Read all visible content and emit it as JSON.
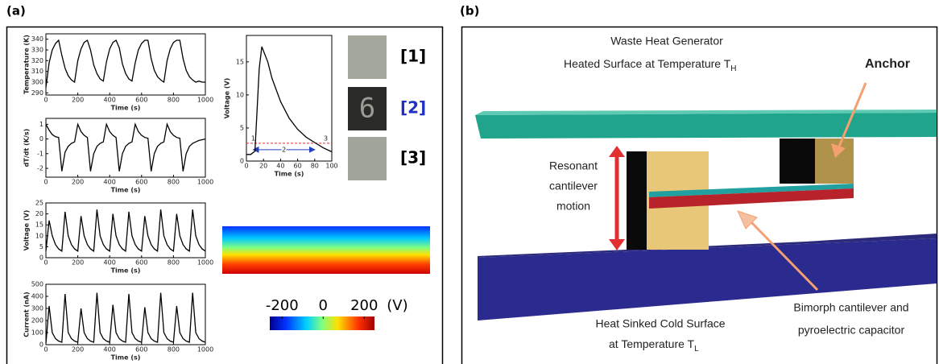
{
  "figure": {
    "panel_a_label": "(a)",
    "panel_b_label": "(b)"
  },
  "chart_data": [
    {
      "type": "line",
      "xlabel": "Time (s)",
      "ylabel": "Temperature (K)",
      "color": "#000000",
      "x": [
        0,
        20,
        40,
        60,
        80,
        100,
        120,
        140,
        160,
        180,
        200,
        220,
        240,
        260,
        280,
        300,
        320,
        340,
        360,
        380,
        400,
        420,
        440,
        460,
        480,
        500,
        520,
        540,
        560,
        580,
        600,
        620,
        640,
        660,
        680,
        700,
        720,
        740,
        760,
        780,
        800,
        820,
        840,
        860,
        880,
        900,
        920,
        940,
        960,
        980,
        1000
      ],
      "values": [
        295,
        318,
        330,
        336,
        339,
        325,
        313,
        306,
        302,
        300,
        320,
        331,
        337,
        339,
        330,
        316,
        308,
        303,
        301,
        319,
        331,
        337,
        339,
        332,
        317,
        308,
        303,
        301,
        318,
        330,
        336,
        339,
        339,
        322,
        311,
        305,
        302,
        300,
        320,
        331,
        337,
        339,
        339,
        322,
        311,
        305,
        302,
        300,
        301,
        300,
        300
      ],
      "xlim": [
        0,
        1000
      ],
      "ylim": [
        288,
        345
      ],
      "xticks": [
        0,
        200,
        400,
        600,
        800,
        1000
      ],
      "yticks": [
        290,
        300,
        310,
        320,
        330,
        340
      ]
    },
    {
      "type": "line",
      "xlabel": "Time (s)",
      "ylabel": "dT/dt (K/s)",
      "color": "#000000",
      "x": [
        0,
        20,
        40,
        60,
        80,
        100,
        120,
        140,
        160,
        180,
        200,
        220,
        240,
        260,
        280,
        300,
        320,
        340,
        360,
        380,
        400,
        420,
        440,
        460,
        480,
        500,
        520,
        540,
        560,
        580,
        600,
        620,
        640,
        660,
        680,
        700,
        720,
        740,
        760,
        780,
        800,
        820,
        840,
        860,
        880,
        900,
        920,
        940,
        960,
        980,
        1000
      ],
      "values": [
        1.0,
        0.6,
        0.3,
        0.15,
        0.1,
        -2.2,
        -0.9,
        -0.5,
        -0.3,
        -0.2,
        1.0,
        0.5,
        0.25,
        0.1,
        -2.2,
        -1.0,
        -0.5,
        -0.3,
        -0.2,
        1.0,
        0.5,
        0.25,
        0.1,
        -2.2,
        -1.0,
        -0.5,
        -0.3,
        -0.2,
        1.0,
        0.5,
        0.25,
        0.1,
        0.05,
        -2.2,
        -1.0,
        -0.5,
        -0.3,
        -0.2,
        1.0,
        0.5,
        0.25,
        0.1,
        0.05,
        -2.2,
        -1.0,
        -0.5,
        -0.3,
        -0.2,
        -0.1,
        -0.05,
        0
      ],
      "xlim": [
        0,
        1000
      ],
      "ylim": [
        -2.6,
        1.4
      ],
      "xticks": [
        0,
        200,
        400,
        600,
        800,
        1000
      ],
      "yticks": [
        -2,
        -1,
        0,
        1
      ]
    },
    {
      "type": "line",
      "xlabel": "Time (s)",
      "ylabel": "Voltage (V)",
      "color": "#000000",
      "x": [
        0,
        20,
        40,
        60,
        80,
        100,
        120,
        140,
        160,
        180,
        200,
        220,
        240,
        260,
        280,
        300,
        320,
        340,
        360,
        380,
        400,
        420,
        440,
        460,
        480,
        500,
        520,
        540,
        560,
        580,
        600,
        620,
        640,
        660,
        680,
        700,
        720,
        740,
        760,
        780,
        800,
        820,
        840,
        860,
        880,
        900,
        920,
        940,
        960,
        980,
        1000
      ],
      "values": [
        3,
        17,
        10,
        6,
        4,
        3,
        21,
        10,
        6,
        4,
        3,
        19,
        10,
        6,
        4,
        3,
        22,
        10,
        6,
        4,
        3,
        20,
        10,
        6,
        4,
        3,
        21,
        10,
        6,
        4,
        3,
        19,
        10,
        6,
        4,
        3,
        22,
        10,
        6,
        4,
        3,
        20,
        10,
        6,
        4,
        3,
        22,
        10,
        6,
        4,
        3
      ],
      "xlim": [
        0,
        1000
      ],
      "ylim": [
        0,
        25
      ],
      "xticks": [
        0,
        200,
        400,
        600,
        800,
        1000
      ],
      "yticks": [
        0,
        5,
        10,
        15,
        20,
        25
      ]
    },
    {
      "type": "line",
      "xlabel": "Time (s)",
      "ylabel": "Current (nA)",
      "color": "#000000",
      "x": [
        0,
        20,
        40,
        60,
        80,
        100,
        120,
        140,
        160,
        180,
        200,
        220,
        240,
        260,
        280,
        300,
        320,
        340,
        360,
        380,
        400,
        420,
        440,
        460,
        480,
        500,
        520,
        540,
        560,
        580,
        600,
        620,
        640,
        660,
        680,
        700,
        720,
        740,
        760,
        780,
        800,
        820,
        840,
        860,
        880,
        900,
        920,
        940,
        960,
        980,
        1000
      ],
      "values": [
        10,
        320,
        100,
        50,
        30,
        20,
        420,
        100,
        50,
        30,
        20,
        300,
        100,
        50,
        30,
        20,
        430,
        100,
        50,
        30,
        20,
        330,
        100,
        50,
        30,
        20,
        420,
        100,
        50,
        30,
        20,
        310,
        100,
        50,
        30,
        20,
        430,
        100,
        50,
        30,
        20,
        320,
        100,
        50,
        30,
        20,
        430,
        100,
        50,
        30,
        20
      ],
      "xlim": [
        0,
        1000
      ],
      "ylim": [
        0,
        500
      ],
      "xticks": [
        0,
        200,
        400,
        600,
        800,
        1000
      ],
      "yticks": [
        0,
        100,
        200,
        300,
        400,
        500
      ]
    },
    {
      "type": "line",
      "xlabel": "Time (s)",
      "ylabel": "Voltage (V)",
      "color": "#000000",
      "x": [
        0,
        5,
        10,
        15,
        18,
        25,
        30,
        40,
        50,
        60,
        70,
        80,
        90,
        100
      ],
      "values": [
        1,
        1,
        1.5,
        14,
        17.3,
        15,
        12.5,
        9,
        6.5,
        4.8,
        3.6,
        2.8,
        2,
        1.4
      ],
      "xlim": [
        0,
        100
      ],
      "ylim": [
        0,
        19
      ],
      "xticks": [
        0,
        20,
        40,
        60,
        80,
        100
      ],
      "yticks": [
        0,
        5,
        10,
        15
      ],
      "reference_line": {
        "value": 2.7,
        "color": "#e03030"
      },
      "span": {
        "from": 8,
        "to": 80,
        "label": "2",
        "color": "#2040c0"
      },
      "annotations": [
        {
          "x": 8,
          "y": 2.7,
          "label": "1"
        },
        {
          "x": 93,
          "y": 2.7,
          "label": "3"
        }
      ]
    }
  ],
  "images": {
    "labels": [
      "[1]",
      "[2]",
      "[3]"
    ],
    "digit": "6"
  },
  "colorbar": {
    "ticks": [
      -200,
      0,
      200
    ],
    "unit": "(V)",
    "lim": [
      -260,
      250
    ]
  },
  "diagram": {
    "generator": "Waste Heat Generator",
    "hot_surface": "Heated Surface at Temperature  T",
    "hot_subscript": "H",
    "anchor": "Anchor",
    "motion": [
      "Resonant",
      "cantilever",
      "motion"
    ],
    "cold_surface": "Heat Sinked Cold Surface",
    "cold_temp": "at Temperature T",
    "cold_subscript": "L",
    "bimorph": [
      "Bimorph cantilever and",
      "pyroelectric capacitor"
    ]
  }
}
